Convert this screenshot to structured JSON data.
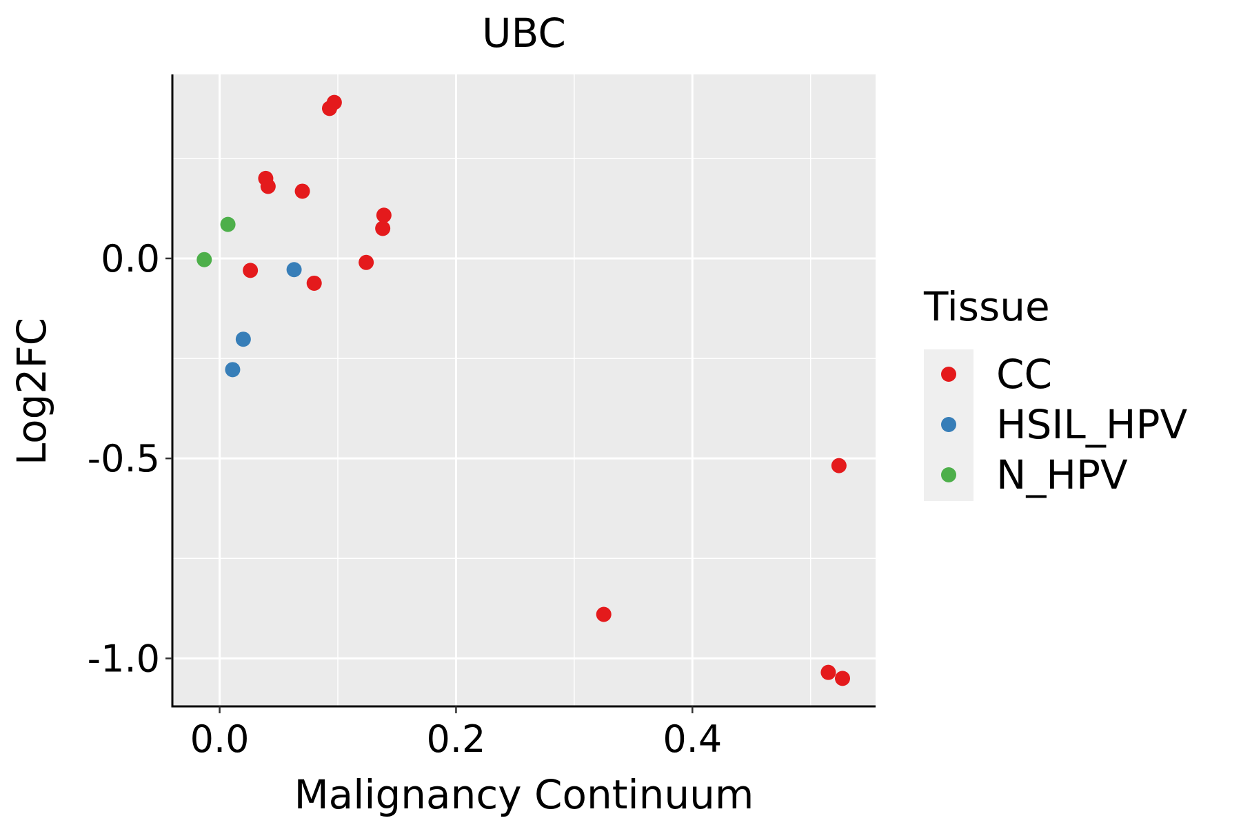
{
  "chart_data": {
    "type": "scatter",
    "title": "UBC",
    "xlabel": "Malignancy Continuum",
    "ylabel": "Log2FC",
    "xlim": [
      -0.04,
      0.555
    ],
    "ylim": [
      -1.12,
      0.46
    ],
    "x_ticks": [
      {
        "value": 0.0,
        "label": "0.0"
      },
      {
        "value": 0.2,
        "label": "0.2"
      },
      {
        "value": 0.4,
        "label": "0.4"
      }
    ],
    "y_ticks": [
      {
        "value": 0.0,
        "label": "0.0"
      },
      {
        "value": -0.5,
        "label": "-0.5"
      },
      {
        "value": -1.0,
        "label": "-1.0"
      }
    ],
    "grid": true,
    "legend": {
      "title": "Tissue",
      "position": "right",
      "entries": [
        {
          "name": "CC",
          "color": "#E41A1C"
        },
        {
          "name": "HSIL_HPV",
          "color": "#377EB8"
        },
        {
          "name": "N_HPV",
          "color": "#4DAF4A"
        }
      ]
    },
    "series": [
      {
        "name": "CC",
        "color": "#E41A1C",
        "points": [
          {
            "x": 0.093,
            "y": 0.375
          },
          {
            "x": 0.097,
            "y": 0.39
          },
          {
            "x": 0.039,
            "y": 0.2
          },
          {
            "x": 0.041,
            "y": 0.18
          },
          {
            "x": 0.07,
            "y": 0.168
          },
          {
            "x": 0.139,
            "y": 0.108
          },
          {
            "x": 0.138,
            "y": 0.075
          },
          {
            "x": 0.026,
            "y": -0.03
          },
          {
            "x": 0.08,
            "y": -0.062
          },
          {
            "x": 0.124,
            "y": -0.01
          },
          {
            "x": 0.325,
            "y": -0.89
          },
          {
            "x": 0.524,
            "y": -0.518
          },
          {
            "x": 0.515,
            "y": -1.035
          },
          {
            "x": 0.527,
            "y": -1.05
          }
        ]
      },
      {
        "name": "HSIL_HPV",
        "color": "#377EB8",
        "points": [
          {
            "x": 0.063,
            "y": -0.028
          },
          {
            "x": 0.02,
            "y": -0.202
          },
          {
            "x": 0.011,
            "y": -0.278
          }
        ]
      },
      {
        "name": "N_HPV",
        "color": "#4DAF4A",
        "points": [
          {
            "x": 0.007,
            "y": 0.085
          },
          {
            "x": -0.013,
            "y": -0.003
          }
        ]
      }
    ]
  }
}
